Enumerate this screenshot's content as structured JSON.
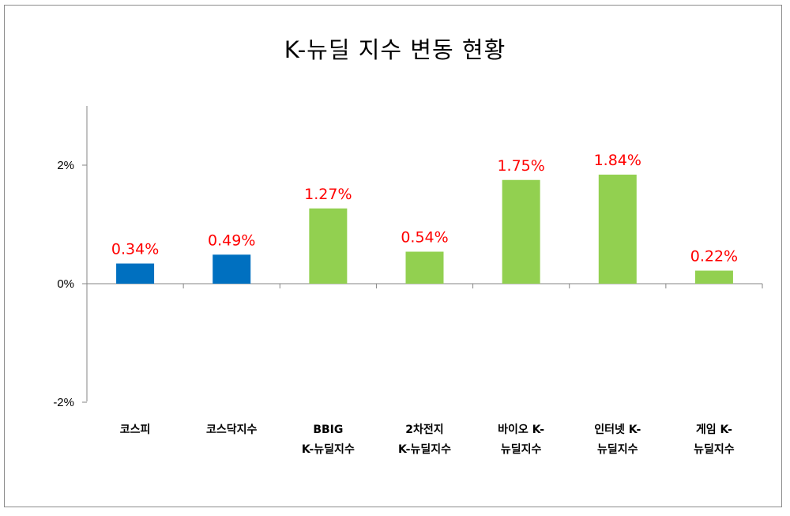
{
  "chart_data": {
    "type": "bar",
    "title": "K-뉴딜 지수 변동 현황",
    "xlabel": "",
    "ylabel": "",
    "ylim": [
      -2,
      3
    ],
    "yticks": [
      {
        "value": 2,
        "label": "2%"
      },
      {
        "value": 0,
        "label": "0%"
      },
      {
        "value": -2,
        "label": "-2%"
      }
    ],
    "grid": false,
    "legend": "none",
    "categories": [
      [
        "코스피"
      ],
      [
        "코스닥지수"
      ],
      [
        "BBIG",
        "K-뉴딜지수"
      ],
      [
        "2차전지",
        "K-뉴딜지수"
      ],
      [
        "바이오 K-",
        "뉴딜지수"
      ],
      [
        "인터넷 K-",
        "뉴딜지수"
      ],
      [
        "게임 K-",
        "뉴딜지수"
      ]
    ],
    "values": [
      0.34,
      0.49,
      1.27,
      0.54,
      1.75,
      1.84,
      0.22
    ],
    "data_labels": [
      "0.34%",
      "0.49%",
      "1.27%",
      "0.54%",
      "1.75%",
      "1.84%",
      "0.22%"
    ],
    "bar_colors": [
      "#0070c0",
      "#0070c0",
      "#92d050",
      "#92d050",
      "#92d050",
      "#92d050",
      "#92d050"
    ],
    "data_label_color": "#ff0000"
  }
}
